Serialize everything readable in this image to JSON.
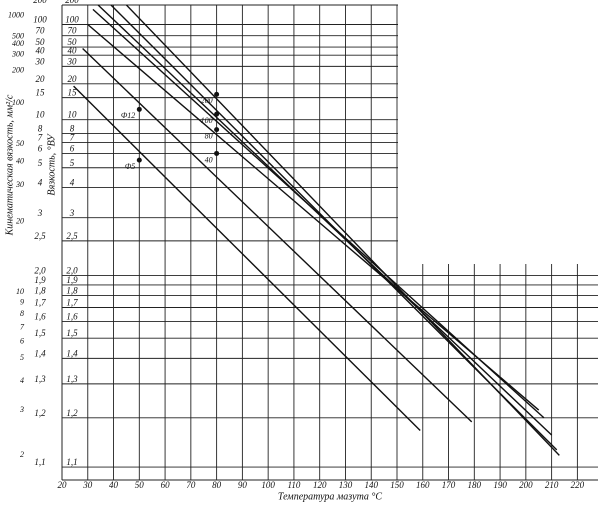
{
  "chart_data": {
    "type": "line",
    "x_label": "Температура мазута °С",
    "y_label": "Кинематическая вязкость, мм²/с",
    "y2_label": "Вязкость, °ВУ",
    "xlim": [
      20,
      228
    ],
    "xticks": [
      20,
      30,
      40,
      50,
      60,
      70,
      80,
      90,
      100,
      110,
      120,
      130,
      140,
      150,
      160,
      170,
      180,
      190,
      200,
      210,
      220
    ],
    "ylim": [
      1.08,
      200
    ],
    "yscale": "loglog",
    "yticks": [
      200,
      100,
      70,
      50,
      40,
      30,
      20,
      15,
      10,
      8,
      7,
      6,
      5,
      4,
      3,
      {
        "value": 2.5,
        "label": "2,5"
      },
      {
        "value": 2,
        "label": "2,0"
      },
      {
        "value": 1.9,
        "label": "1,9"
      },
      {
        "value": 1.8,
        "label": "1,8"
      },
      {
        "value": 1.7,
        "label": "1,7"
      },
      {
        "value": 1.6,
        "label": "1,6"
      },
      {
        "value": 1.5,
        "label": "1,5"
      },
      {
        "value": 1.4,
        "label": "1,4"
      },
      {
        "value": 1.3,
        "label": "1,3"
      },
      {
        "value": 1.2,
        "label": "1,2"
      },
      {
        "value": 1.1,
        "label": "1,1"
      }
    ],
    "kinematic_ticks": [
      {
        "value": 135,
        "label": "1000"
      },
      {
        "value": 67.5,
        "label": "500"
      },
      {
        "value": 54,
        "label": "400"
      },
      {
        "value": 40.5,
        "label": "300"
      },
      {
        "value": 27,
        "label": "200"
      },
      {
        "value": 13.5,
        "label": "100"
      },
      {
        "value": 6.8,
        "label": "50"
      },
      {
        "value": 5.4,
        "label": "40"
      },
      {
        "value": 4.1,
        "label": "30"
      },
      {
        "value": 2.9,
        "label": "20"
      },
      {
        "value": 1.83,
        "label": "10"
      },
      {
        "value": 1.74,
        "label": "9"
      },
      {
        "value": 1.65,
        "label": "8"
      },
      {
        "value": 1.56,
        "label": "7"
      },
      {
        "value": 1.48,
        "label": "6"
      },
      {
        "value": 1.4,
        "label": "5"
      },
      {
        "value": 1.31,
        "label": "4"
      },
      {
        "value": 1.22,
        "label": "3"
      },
      {
        "value": 1.12,
        "label": "2"
      }
    ],
    "grid": true,
    "color": "#111111",
    "series": [
      {
        "x": [
          24.5,
          159
        ],
        "values": [
          19,
          1.17
        ]
      },
      {
        "x": [
          28,
          179
        ],
        "values": [
          48,
          1.19
        ]
      },
      {
        "x": [
          30,
          205
        ],
        "values": [
          100,
          1.22
        ]
      },
      {
        "x": [
          32,
          207
        ],
        "values": [
          170,
          1.2
        ]
      },
      {
        "x": [
          34,
          210
        ],
        "values": [
          200,
          1.16
        ]
      },
      {
        "x": [
          39,
          212
        ],
        "values": [
          200,
          1.13
        ]
      },
      {
        "x": [
          45,
          213
        ],
        "values": [
          200,
          1.12
        ]
      }
    ],
    "points": [
      {
        "label": "Ф12",
        "x": 50,
        "y": 12
      },
      {
        "label": "Ф5",
        "x": 50,
        "y": 5.5
      },
      {
        "label": "200",
        "x": 80,
        "y": 16
      },
      {
        "label": "100",
        "x": 80,
        "y": 11
      },
      {
        "label": "80",
        "x": 80,
        "y": 8.5
      },
      {
        "label": "40",
        "x": 80,
        "y": 6
      }
    ]
  }
}
